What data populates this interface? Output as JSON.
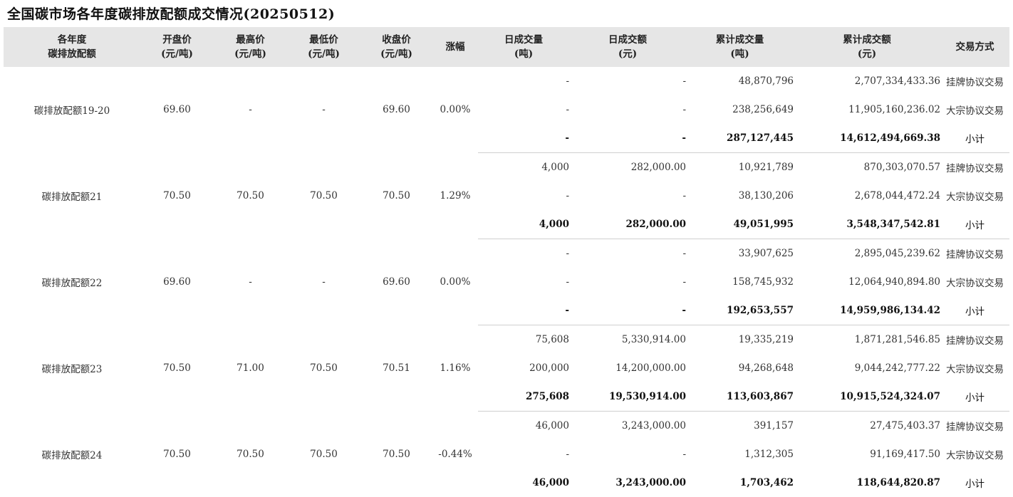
{
  "title": "全国碳市场各年度碳排放配额成交情况(20250512)",
  "headers": [
    [
      "各年度",
      "碳排放配额"
    ],
    [
      "开盘价",
      "(元/吨)"
    ],
    [
      "最高价",
      "(元/吨)"
    ],
    [
      "最低价",
      "(元/吨)"
    ],
    [
      "收盘价",
      "(元/吨)"
    ],
    [
      "涨幅",
      ""
    ],
    [
      "日成交量",
      "(吨)"
    ],
    [
      "日成交额",
      "(元)"
    ],
    [
      "累计成交量",
      "(吨)"
    ],
    [
      "累计成交额",
      "(元)"
    ],
    [
      "交易方式",
      ""
    ]
  ],
  "groups": [
    {
      "name": "碳排放配额19-20",
      "open": "69.60",
      "high": "-",
      "low": "-",
      "close": "69.60",
      "change": "0.00%",
      "rows": [
        {
          "day_vol": "-",
          "day_amt": "-",
          "cum_vol": "48,870,796",
          "cum_amt": "2,707,334,433.36",
          "method": "挂牌协议交易"
        },
        {
          "day_vol": "-",
          "day_amt": "-",
          "cum_vol": "238,256,649",
          "cum_amt": "11,905,160,236.02",
          "method": "大宗协议交易"
        },
        {
          "day_vol": "-",
          "day_amt": "-",
          "cum_vol": "287,127,445",
          "cum_amt": "14,612,494,669.38",
          "method": "小计"
        }
      ]
    },
    {
      "name": "碳排放配额21",
      "open": "70.50",
      "high": "70.50",
      "low": "70.50",
      "close": "70.50",
      "change": "1.29%",
      "rows": [
        {
          "day_vol": "4,000",
          "day_amt": "282,000.00",
          "cum_vol": "10,921,789",
          "cum_amt": "870,303,070.57",
          "method": "挂牌协议交易"
        },
        {
          "day_vol": "-",
          "day_amt": "-",
          "cum_vol": "38,130,206",
          "cum_amt": "2,678,044,472.24",
          "method": "大宗协议交易"
        },
        {
          "day_vol": "4,000",
          "day_amt": "282,000.00",
          "cum_vol": "49,051,995",
          "cum_amt": "3,548,347,542.81",
          "method": "小计"
        }
      ]
    },
    {
      "name": "碳排放配额22",
      "open": "69.60",
      "high": "-",
      "low": "-",
      "close": "69.60",
      "change": "0.00%",
      "rows": [
        {
          "day_vol": "-",
          "day_amt": "-",
          "cum_vol": "33,907,625",
          "cum_amt": "2,895,045,239.62",
          "method": "挂牌协议交易"
        },
        {
          "day_vol": "-",
          "day_amt": "-",
          "cum_vol": "158,745,932",
          "cum_amt": "12,064,940,894.80",
          "method": "大宗协议交易"
        },
        {
          "day_vol": "-",
          "day_amt": "-",
          "cum_vol": "192,653,557",
          "cum_amt": "14,959,986,134.42",
          "method": "小计"
        }
      ]
    },
    {
      "name": "碳排放配额23",
      "open": "70.50",
      "high": "71.00",
      "low": "70.50",
      "close": "70.51",
      "change": "1.16%",
      "rows": [
        {
          "day_vol": "75,608",
          "day_amt": "5,330,914.00",
          "cum_vol": "19,335,219",
          "cum_amt": "1,871,281,546.85",
          "method": "挂牌协议交易"
        },
        {
          "day_vol": "200,000",
          "day_amt": "14,200,000.00",
          "cum_vol": "94,268,648",
          "cum_amt": "9,044,242,777.22",
          "method": "大宗协议交易"
        },
        {
          "day_vol": "275,608",
          "day_amt": "19,530,914.00",
          "cum_vol": "113,603,867",
          "cum_amt": "10,915,524,324.07",
          "method": "小计"
        }
      ]
    },
    {
      "name": "碳排放配额24",
      "open": "70.50",
      "high": "70.50",
      "low": "70.50",
      "close": "70.50",
      "change": "-0.44%",
      "rows": [
        {
          "day_vol": "46,000",
          "day_amt": "3,243,000.00",
          "cum_vol": "391,157",
          "cum_amt": "27,475,403.37",
          "method": "挂牌协议交易"
        },
        {
          "day_vol": "-",
          "day_amt": "-",
          "cum_vol": "1,312,305",
          "cum_amt": "91,169,417.50",
          "method": "大宗协议交易"
        },
        {
          "day_vol": "46,000",
          "day_amt": "3,243,000.00",
          "cum_vol": "1,703,462",
          "cum_amt": "118,644,820.87",
          "method": "小计"
        }
      ]
    }
  ]
}
